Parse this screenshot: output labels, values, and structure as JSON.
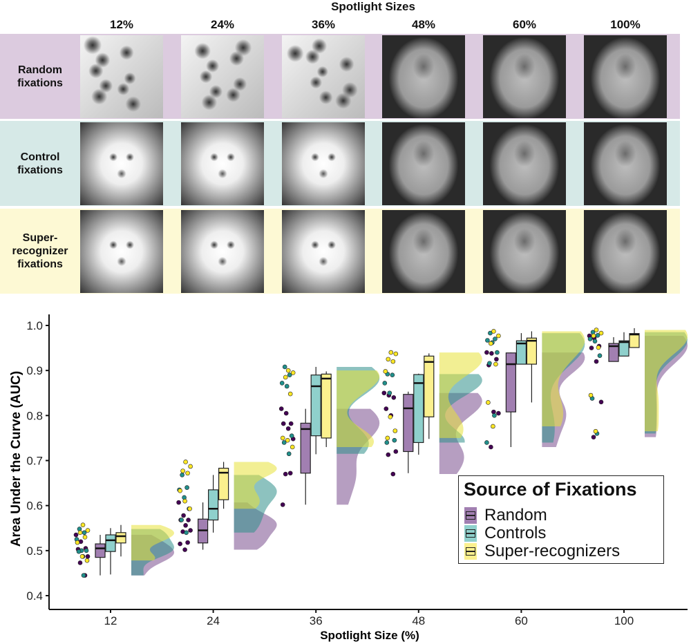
{
  "figure": {
    "title": "Spotlight Sizes",
    "columns": [
      "12%",
      "24%",
      "36%",
      "48%",
      "60%",
      "100%"
    ],
    "rows": [
      {
        "label": "Random fixations",
        "bg": "#dccbdf"
      },
      {
        "label": "Control fixations",
        "bg": "#d6e9e7"
      },
      {
        "label": "Super-recognizer fixations",
        "bg": "#fdf9d4"
      }
    ]
  },
  "chart_data": {
    "type": "boxplot",
    "xlabel": "Spotlight Size (%)",
    "ylabel": "Area Under the Curve (AUC)",
    "categories": [
      "12",
      "24",
      "36",
      "48",
      "60",
      "100"
    ],
    "ylim": [
      0.4,
      1.0
    ],
    "yticks": [
      "0.4",
      "0.5",
      "0.6",
      "0.7",
      "0.8",
      "0.9",
      "1.0"
    ],
    "grid": false,
    "legend": {
      "title": "Source of Fixations",
      "placement": "bottom-right"
    },
    "series": [
      {
        "name": "Random",
        "point_color": "#440154",
        "box_color": "#a17fb1",
        "box": [
          [
            0.445,
            0.485,
            0.505,
            0.515,
            0.535
          ],
          [
            0.502,
            0.517,
            0.545,
            0.57,
            0.607
          ],
          [
            0.602,
            0.672,
            0.77,
            0.783,
            0.815
          ],
          [
            0.672,
            0.72,
            0.816,
            0.847,
            0.853
          ],
          [
            0.73,
            0.808,
            0.914,
            0.939,
            0.94
          ],
          [
            0.92,
            0.92,
            0.954,
            0.96,
            0.974
          ]
        ],
        "points": [
          [
            0.535,
            0.52,
            0.505,
            0.503,
            0.487,
            0.487,
            0.473,
            0.445
          ],
          [
            0.607,
            0.578,
            0.568,
            0.568,
            0.556,
            0.545,
            0.542,
            0.518,
            0.515,
            0.502
          ],
          [
            0.815,
            0.805,
            0.782,
            0.782,
            0.771,
            0.748,
            0.67,
            0.672,
            0.602
          ],
          [
            0.85,
            0.845,
            0.84,
            0.815,
            0.8,
            0.72,
            0.713,
            0.67
          ],
          [
            0.94,
            0.938,
            0.925,
            0.912,
            0.808,
            0.805,
            0.73
          ],
          [
            0.977,
            0.972,
            0.954,
            0.95,
            0.92,
            0.83,
            0.752
          ]
        ]
      },
      {
        "name": "Controls",
        "point_color": "#21908c",
        "box_color": "#8fd0cc",
        "box": [
          [
            0.447,
            0.498,
            0.523,
            0.535,
            0.55
          ],
          [
            0.54,
            0.568,
            0.593,
            0.635,
            0.668
          ],
          [
            0.714,
            0.755,
            0.865,
            0.89,
            0.908
          ],
          [
            0.713,
            0.74,
            0.872,
            0.891,
            0.893
          ],
          [
            0.914,
            0.914,
            0.96,
            0.966,
            0.983
          ],
          [
            0.932,
            0.932,
            0.963,
            0.966,
            0.985
          ]
        ],
        "points": [
          [
            0.548,
            0.54,
            0.525,
            0.5,
            0.5,
            0.498,
            0.445
          ],
          [
            0.668,
            0.64,
            0.635,
            0.618,
            0.593,
            0.568,
            0.54
          ],
          [
            0.908,
            0.89,
            0.872,
            0.865,
            0.755,
            0.74,
            0.715
          ],
          [
            0.892,
            0.89,
            0.872,
            0.85,
            0.745,
            0.74
          ],
          [
            0.983,
            0.97,
            0.967,
            0.962,
            0.94,
            0.916,
            0.8,
            0.74
          ],
          [
            0.985,
            0.978,
            0.97,
            0.965,
            0.933,
            0.838,
            0.76
          ]
        ]
      },
      {
        "name": "Super-recognizers",
        "point_color": "#fde725",
        "box_color": "#fbf08e",
        "box": [
          [
            0.487,
            0.517,
            0.532,
            0.54,
            0.557
          ],
          [
            0.593,
            0.613,
            0.673,
            0.683,
            0.697
          ],
          [
            0.73,
            0.75,
            0.882,
            0.892,
            0.898
          ],
          [
            0.748,
            0.797,
            0.919,
            0.932,
            0.938
          ],
          [
            0.829,
            0.914,
            0.966,
            0.972,
            0.987
          ],
          [
            0.951,
            0.951,
            0.98,
            0.982,
            0.994
          ]
        ],
        "points": [
          [
            0.557,
            0.545,
            0.54,
            0.53,
            0.518,
            0.487,
            0.478
          ],
          [
            0.697,
            0.687,
            0.677,
            0.672,
            0.633,
            0.61,
            0.593
          ],
          [
            0.9,
            0.895,
            0.885,
            0.848,
            0.75,
            0.745,
            0.73
          ],
          [
            0.94,
            0.937,
            0.925,
            0.92,
            0.898,
            0.797,
            0.766,
            0.75
          ],
          [
            0.987,
            0.977,
            0.96,
            0.914,
            0.829,
            0.776
          ],
          [
            0.99,
            0.983,
            0.977,
            0.951,
            0.845,
            0.765
          ]
        ]
      }
    ],
    "box_stat_order": [
      "min",
      "q1",
      "median",
      "q3",
      "max"
    ]
  }
}
